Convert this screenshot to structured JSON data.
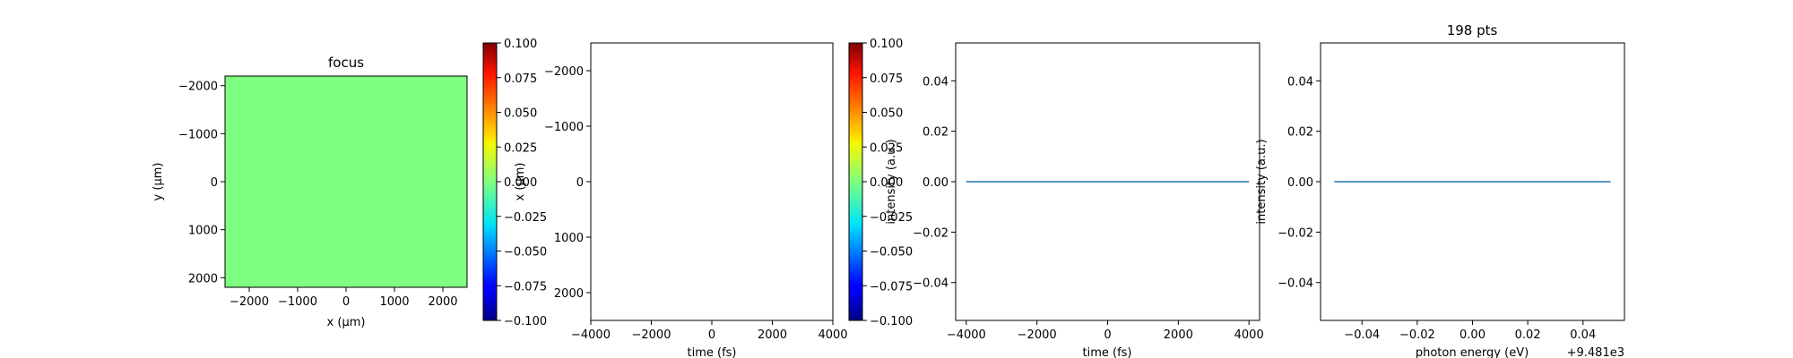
{
  "figure": {
    "colors": {
      "jet_mid": "#7fff7f",
      "line": "#1f77b4",
      "axes": "#000000"
    }
  },
  "chart_data": [
    {
      "type": "heatmap",
      "title": "focus",
      "xlabel": "x (µm)",
      "ylabel": "y (µm)",
      "xlim": [
        -2500,
        2500
      ],
      "ylim": [
        2200,
        -2200
      ],
      "xticks": [
        -2000,
        -1000,
        0,
        1000,
        2000
      ],
      "yticks": [
        -2000,
        -1000,
        0,
        1000,
        2000
      ],
      "values": [
        [
          0
        ]
      ],
      "colorbar": {
        "label": "",
        "range": [
          -0.1,
          0.1
        ],
        "ticks": [
          "-0.100",
          "-0.075",
          "-0.050",
          "-0.025",
          "0.000",
          "0.025",
          "0.050",
          "0.075",
          "0.100"
        ]
      },
      "grid": false
    },
    {
      "type": "heatmap",
      "title": "",
      "xlabel": "time (fs)",
      "ylabel": "x (µm)",
      "xlim": [
        -4000,
        4000
      ],
      "ylim": [
        2500,
        -2500
      ],
      "xticks": [
        -4000,
        -2000,
        0,
        2000,
        4000
      ],
      "yticks": [
        -2000,
        -1000,
        0,
        1000,
        2000
      ],
      "values": [],
      "colorbar": {
        "label": "intensity (a.u.)",
        "range": [
          -0.1,
          0.1
        ],
        "ticks": [
          "-0.100",
          "-0.075",
          "-0.050",
          "-0.025",
          "0.000",
          "0.025",
          "0.050",
          "0.075",
          "0.100"
        ]
      },
      "grid": false
    },
    {
      "type": "line",
      "title": "",
      "xlabel": "time (fs)",
      "ylabel": "",
      "xlim": [
        -4300,
        4300
      ],
      "ylim": [
        -0.055,
        0.055
      ],
      "xticks": [
        -4000,
        -2000,
        0,
        2000,
        4000
      ],
      "yticks": [
        "-0.04",
        "-0.02",
        "0.00",
        "0.02",
        "0.04"
      ],
      "series": [
        {
          "x": [
            -4000,
            4000
          ],
          "y": [
            0,
            0
          ]
        }
      ],
      "grid": false
    },
    {
      "type": "line",
      "title": "198 pts",
      "xlabel": "photon energy (eV)",
      "ylabel": "intensity (a.u.)",
      "x_offset_label": "+9.481e3",
      "xlim": [
        -0.055,
        0.055
      ],
      "ylim": [
        -0.055,
        0.055
      ],
      "xticks": [
        "-0.04",
        "-0.02",
        "0.00",
        "0.02",
        "0.04"
      ],
      "yticks": [
        "-0.04",
        "-0.02",
        "0.00",
        "0.02",
        "0.04"
      ],
      "series": [
        {
          "x": [
            -0.05,
            0.05
          ],
          "y": [
            0,
            0
          ]
        }
      ],
      "grid": false
    }
  ]
}
